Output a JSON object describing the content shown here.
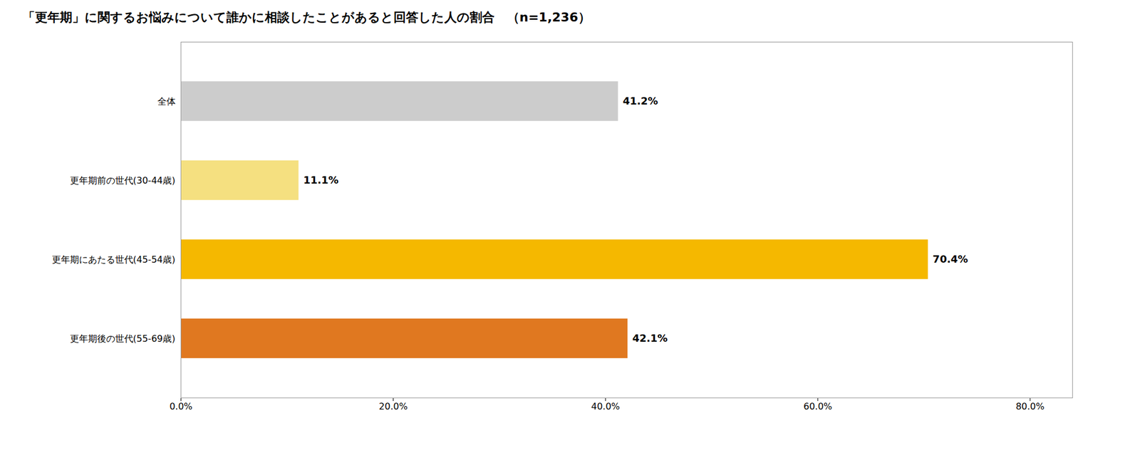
{
  "chart_data": {
    "type": "bar",
    "orientation": "horizontal",
    "title": "「更年期」に関するお悩みについて誰かに相談したことがあると回答した人の割合　（n=1,236）",
    "categories": [
      "全体",
      "更年期前の世代(30-44歳)",
      "更年期にあたる世代(45-54歳)",
      "更年期後の世代(55-69歳)"
    ],
    "values": [
      41.2,
      11.1,
      70.4,
      42.1
    ],
    "value_labels": [
      "41.2%",
      "11.1%",
      "70.4%",
      "42.1%"
    ],
    "colors": [
      "#CCCCCC",
      "#F5E080",
      "#F5B800",
      "#E07820"
    ],
    "data_labels": true,
    "grid": false,
    "xlim": [
      0,
      84
    ],
    "xticks": [
      {
        "value": 0,
        "label": "0.0%"
      },
      {
        "value": 20,
        "label": "20.0%"
      },
      {
        "value": 40,
        "label": "40.0%"
      },
      {
        "value": 60,
        "label": "60.0%"
      },
      {
        "value": 80,
        "label": "80.0%"
      }
    ]
  }
}
